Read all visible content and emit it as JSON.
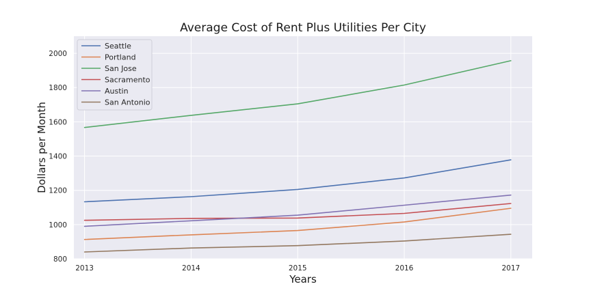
{
  "chart_data": {
    "type": "line",
    "title": "Average Cost of Rent Plus Utilities Per City",
    "xlabel": "Years",
    "ylabel": "Dollars per Month",
    "x": [
      2013,
      2014,
      2015,
      2016,
      2017
    ],
    "xlim": [
      2012.9,
      2017.2
    ],
    "ylim": [
      800,
      2100
    ],
    "yticks": [
      800,
      1000,
      1200,
      1400,
      1600,
      1800,
      2000
    ],
    "grid": true,
    "legend_position": "top-left",
    "background": "#eaeaf2",
    "series": [
      {
        "name": "Seattle",
        "color": "#4c72b0",
        "values": [
          1133,
          1163,
          1205,
          1272,
          1378
        ]
      },
      {
        "name": "Portland",
        "color": "#dd8452",
        "values": [
          913,
          940,
          965,
          1015,
          1095
        ]
      },
      {
        "name": "San Jose",
        "color": "#55a868",
        "values": [
          1567,
          1638,
          1705,
          1815,
          1957
        ]
      },
      {
        "name": "Sacramento",
        "color": "#c44e52",
        "values": [
          1025,
          1036,
          1038,
          1065,
          1123
        ]
      },
      {
        "name": "Austin",
        "color": "#8172b3",
        "values": [
          990,
          1022,
          1055,
          1113,
          1172
        ]
      },
      {
        "name": "San Antonio",
        "color": "#937860",
        "values": [
          840,
          863,
          877,
          904,
          943
        ]
      }
    ]
  }
}
